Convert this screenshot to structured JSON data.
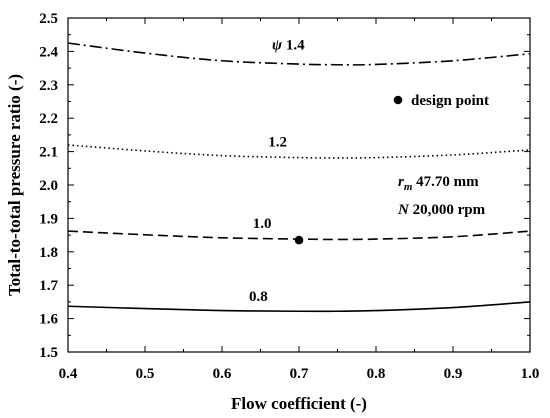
{
  "chart_data": {
    "type": "line",
    "xlabel": "Flow coefficient (-)",
    "ylabel": "Total-to-total pressure ratio (-)",
    "xlim": [
      0.4,
      1.0
    ],
    "ylim": [
      1.5,
      2.5
    ],
    "xticks": [
      "0.4",
      "0.5",
      "0.6",
      "0.7",
      "0.8",
      "0.9",
      "1.0"
    ],
    "yticks": [
      "1.5",
      "1.6",
      "1.7",
      "1.8",
      "1.9",
      "2.0",
      "2.1",
      "2.2",
      "2.3",
      "2.4",
      "2.5"
    ],
    "series": [
      {
        "name": "1.4",
        "label_prefix": "ψ",
        "dash": "dashdot",
        "x": [
          0.4,
          0.5,
          0.6,
          0.7,
          0.75,
          0.8,
          0.9,
          1.0
        ],
        "y": [
          2.425,
          2.395,
          2.372,
          2.362,
          2.36,
          2.361,
          2.372,
          2.393
        ]
      },
      {
        "name": "1.2",
        "label_prefix": "",
        "dash": "dotted",
        "x": [
          0.4,
          0.5,
          0.6,
          0.7,
          0.75,
          0.8,
          0.9,
          1.0
        ],
        "y": [
          2.12,
          2.102,
          2.088,
          2.082,
          2.081,
          2.082,
          2.09,
          2.105
        ]
      },
      {
        "name": "1.0",
        "label_prefix": "",
        "dash": "dashed",
        "x": [
          0.4,
          0.5,
          0.6,
          0.7,
          0.75,
          0.8,
          0.9,
          1.0
        ],
        "y": [
          1.862,
          1.851,
          1.842,
          1.838,
          1.837,
          1.838,
          1.845,
          1.862
        ]
      },
      {
        "name": "0.8",
        "label_prefix": "",
        "dash": "solid",
        "x": [
          0.4,
          0.5,
          0.6,
          0.7,
          0.75,
          0.8,
          0.9,
          1.0
        ],
        "y": [
          1.637,
          1.63,
          1.624,
          1.622,
          1.622,
          1.624,
          1.633,
          1.65
        ]
      }
    ],
    "label_positions": [
      {
        "series": "1.4",
        "x": 0.665,
        "y": 2.405
      },
      {
        "series": "1.2",
        "x": 0.66,
        "y": 2.115
      },
      {
        "series": "1.0",
        "x": 0.64,
        "y": 1.872
      },
      {
        "series": "0.8",
        "x": 0.635,
        "y": 1.653
      }
    ],
    "points": [
      {
        "name": "design point",
        "x": 0.7,
        "y": 1.835
      }
    ],
    "legend": {
      "position": "upper-right",
      "entries": [
        {
          "marker": "filled-circle",
          "label": "design point"
        }
      ]
    },
    "annotations": [
      {
        "symbol": "r",
        "subscript": "m",
        "text": " 47.70 mm"
      },
      {
        "symbol": "N",
        "subscript": "",
        "text": " 20,000 rpm"
      }
    ],
    "grid": false
  }
}
